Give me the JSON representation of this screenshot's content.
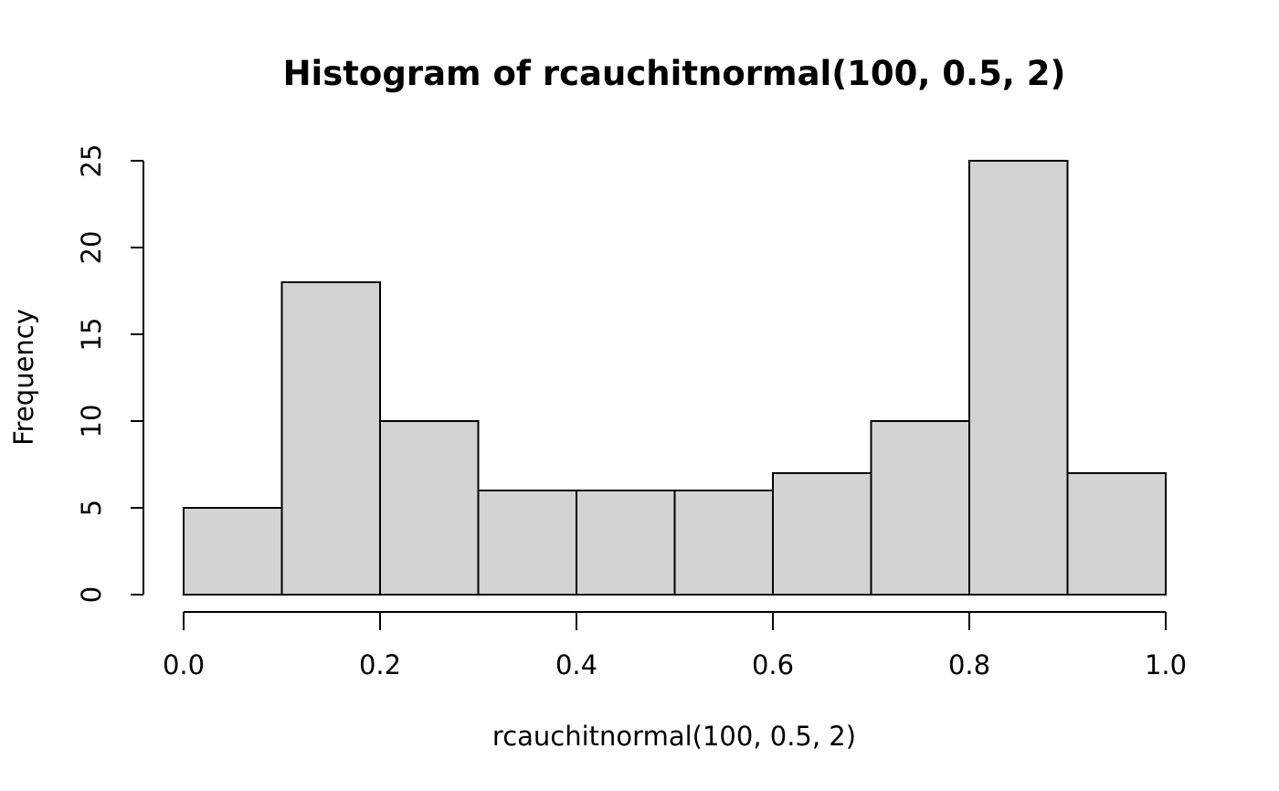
{
  "chart_data": {
    "type": "bar",
    "title": "Histogram of rcauchitnormal(100, 0.5, 2)",
    "xlabel": "rcauchitnormal(100, 0.5, 2)",
    "ylabel": "Frequency",
    "bins": [
      {
        "start": 0.0,
        "end": 0.1,
        "count": 5
      },
      {
        "start": 0.1,
        "end": 0.2,
        "count": 18
      },
      {
        "start": 0.2,
        "end": 0.3,
        "count": 10
      },
      {
        "start": 0.3,
        "end": 0.4,
        "count": 6
      },
      {
        "start": 0.4,
        "end": 0.5,
        "count": 6
      },
      {
        "start": 0.5,
        "end": 0.6,
        "count": 6
      },
      {
        "start": 0.6,
        "end": 0.7,
        "count": 7
      },
      {
        "start": 0.7,
        "end": 0.8,
        "count": 10
      },
      {
        "start": 0.8,
        "end": 0.9,
        "count": 25
      },
      {
        "start": 0.9,
        "end": 1.0,
        "count": 7
      }
    ],
    "xlim": [
      0.0,
      1.0
    ],
    "ylim": [
      0,
      25
    ],
    "x_ticks": [
      0.0,
      0.2,
      0.4,
      0.6,
      0.8,
      1.0
    ],
    "x_tick_labels": [
      "0.0",
      "0.2",
      "0.4",
      "0.6",
      "0.8",
      "1.0"
    ],
    "y_ticks": [
      0,
      5,
      10,
      15,
      20,
      25
    ],
    "y_tick_labels": [
      "0",
      "5",
      "10",
      "15",
      "20",
      "25"
    ],
    "bar_fill": "#d3d3d3",
    "bar_stroke": "#000000",
    "grid": false
  }
}
